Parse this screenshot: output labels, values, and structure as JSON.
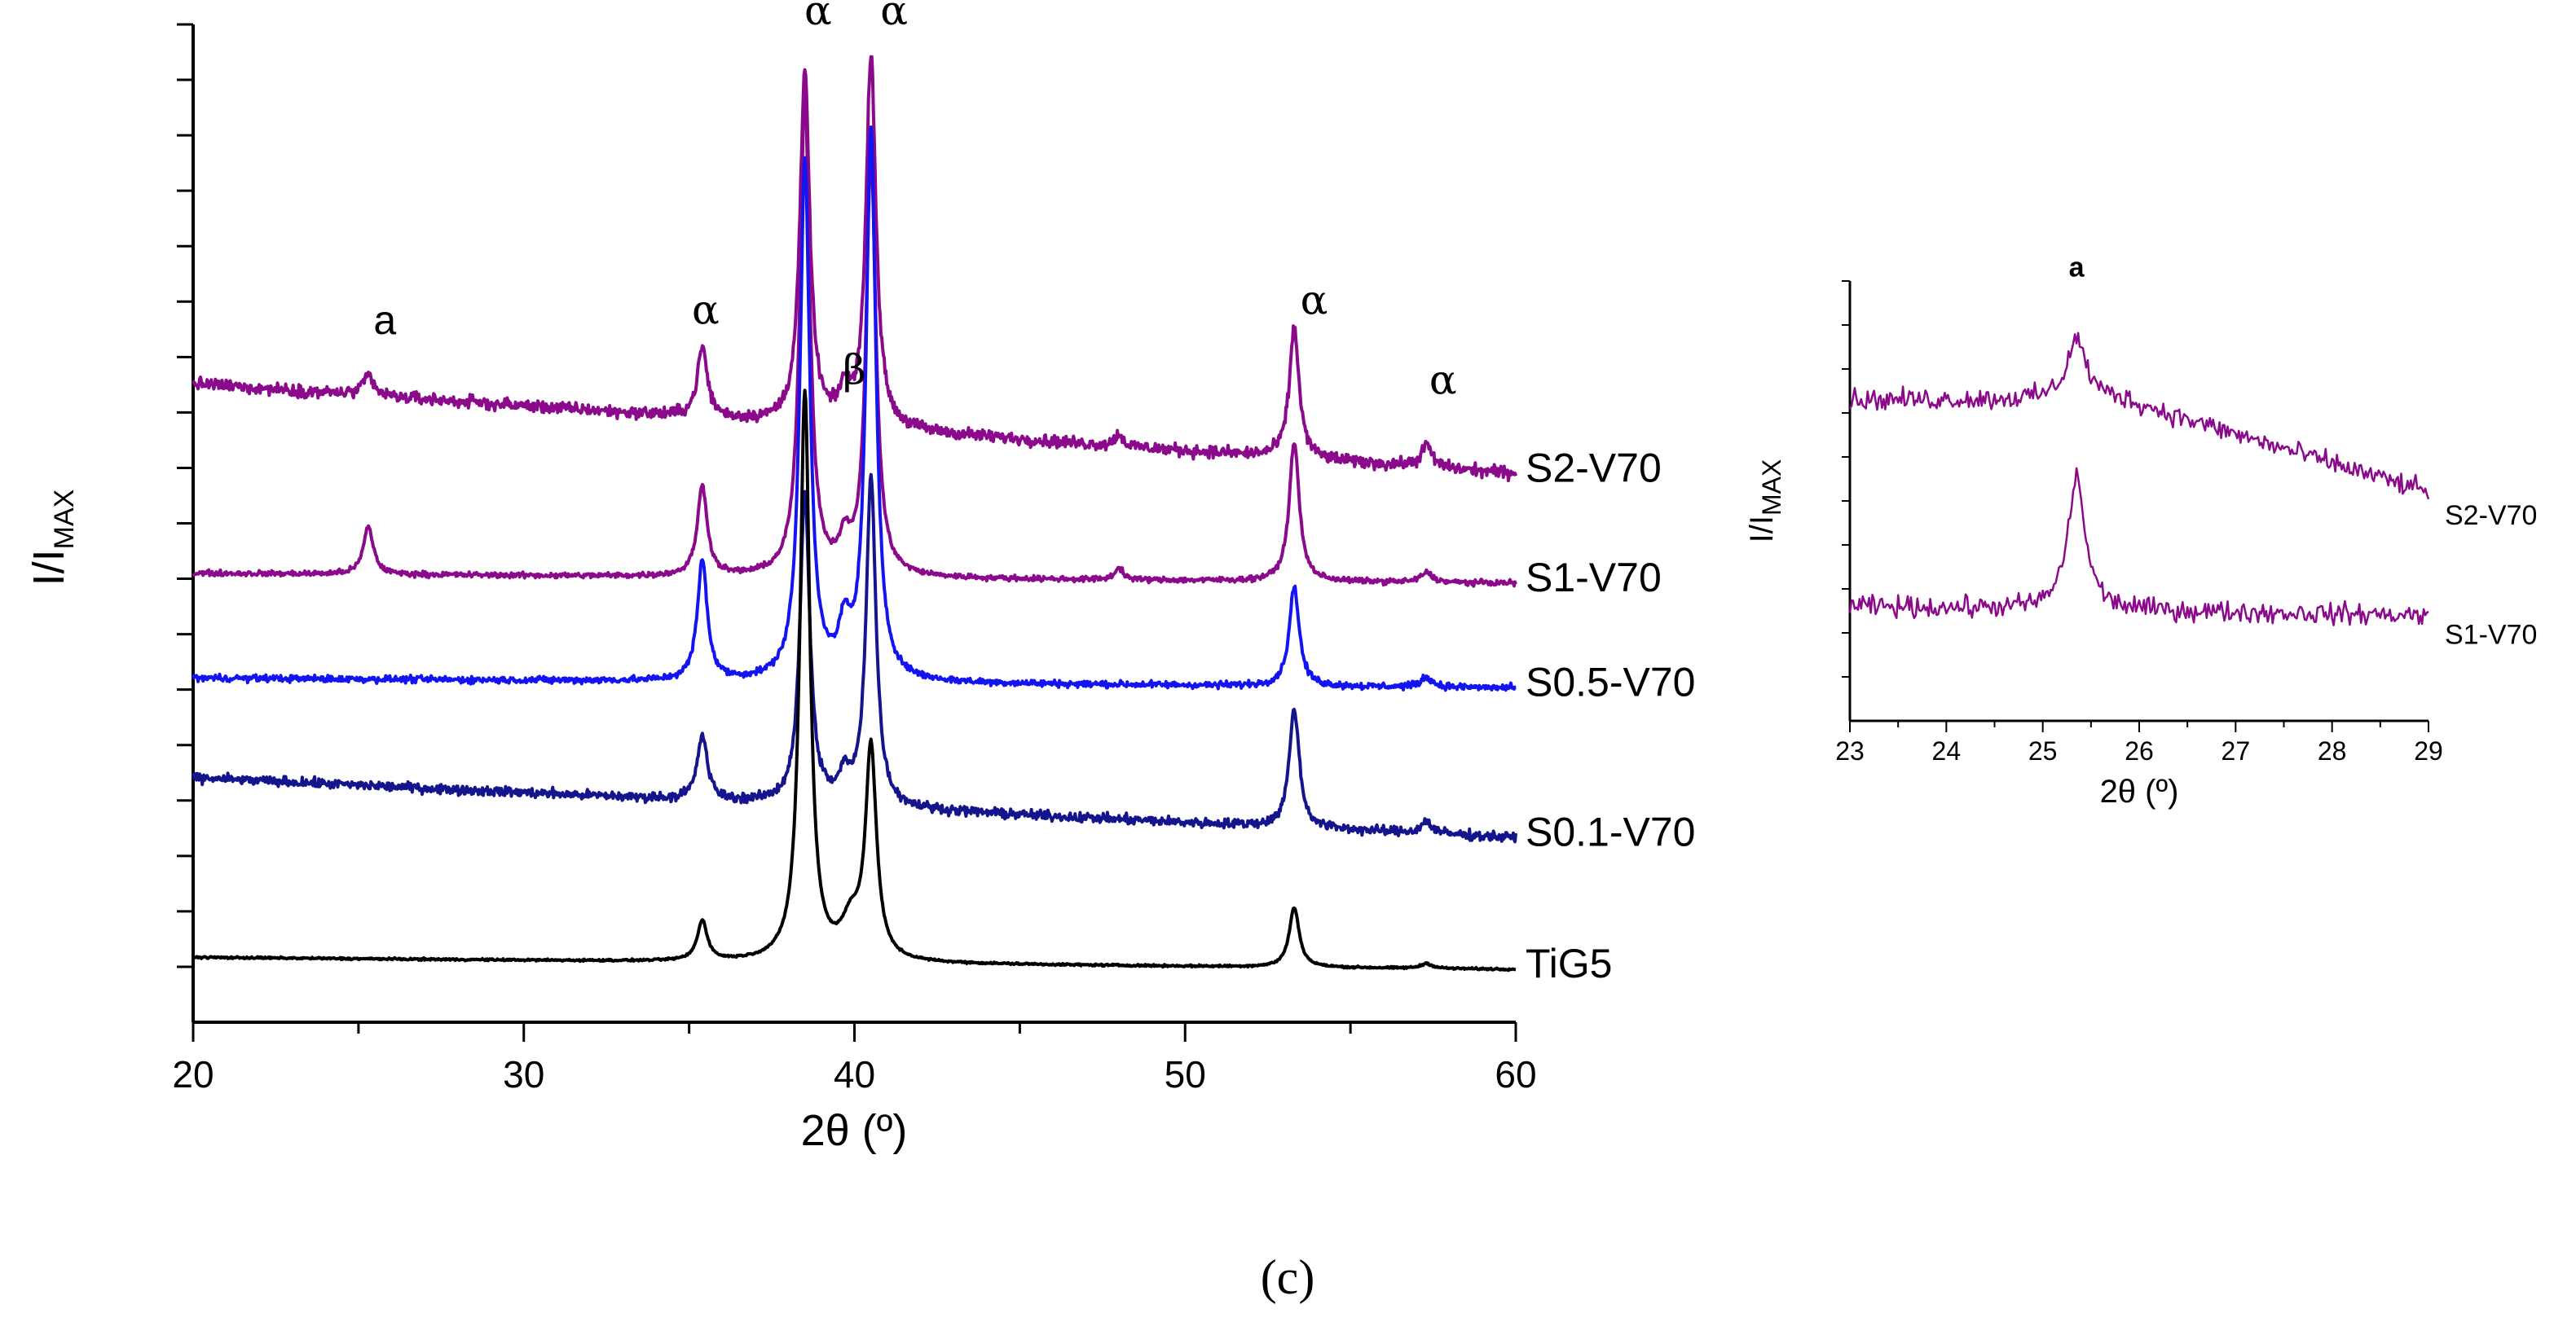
{
  "caption": "(c)",
  "chart_data": [
    {
      "type": "line",
      "title": "",
      "xlabel": "2θ (º)",
      "ylabel": "I/IMAX",
      "ylabel_main": "I/I",
      "ylabel_sub": "MAX",
      "xlim": [
        20,
        60
      ],
      "ylim": [
        -0.5,
        9.5
      ],
      "x_ticks": [
        20,
        30,
        40,
        50,
        60
      ],
      "x_tick_labels": [
        "20",
        "30",
        "40",
        "50",
        "60"
      ],
      "y_tick_labels": [],
      "grid": false,
      "peaks": [
        {
          "label": "a",
          "x": 25.8,
          "y": 6.4
        },
        {
          "label": "α",
          "x": 35.5,
          "y": 6.5
        },
        {
          "label": "α",
          "x": 38.9,
          "y": 9.5
        },
        {
          "label": "α",
          "x": 41.2,
          "y": 9.5
        },
        {
          "label": "β",
          "x": 40.0,
          "y": 5.9
        },
        {
          "label": "α",
          "x": 53.9,
          "y": 6.6
        },
        {
          "label": "α",
          "x": 57.8,
          "y": 5.8
        }
      ],
      "series": [
        {
          "name": "S2-V70",
          "color": "#8B0A8B",
          "baseline": [
            5.9,
            5.0
          ],
          "noise": 0.09,
          "slope_start": 20,
          "peaks": [
            [
              25.3,
              0.2,
              0.18
            ],
            [
              35.4,
              0.7,
              0.18
            ],
            [
              38.5,
              3.5,
              0.18
            ],
            [
              39.7,
              0.3,
              0.18
            ],
            [
              40.5,
              3.75,
              0.18
            ],
            [
              48.0,
              0.12,
              0.15
            ],
            [
              53.3,
              1.3,
              0.18
            ],
            [
              57.3,
              0.22,
              0.2
            ]
          ]
        },
        {
          "name": "S1-V70",
          "color": "#8B0A8B",
          "baseline": [
            4.0,
            3.9
          ],
          "noise": 0.04,
          "slope_start": 20,
          "peaks": [
            [
              25.3,
              0.48,
              0.18
            ],
            [
              35.4,
              0.9,
              0.18
            ],
            [
              38.5,
              4.8,
              0.18
            ],
            [
              39.7,
              0.3,
              0.18
            ],
            [
              40.5,
              4.2,
              0.18
            ],
            [
              48.0,
              0.12,
              0.15
            ],
            [
              53.3,
              1.4,
              0.18
            ],
            [
              57.3,
              0.1,
              0.2
            ]
          ]
        },
        {
          "name": "S0.5-V70",
          "color": "#1414F0",
          "baseline": [
            2.95,
            2.85
          ],
          "noise": 0.05,
          "slope_start": 20,
          "peaks": [
            [
              35.4,
              1.2,
              0.18
            ],
            [
              38.5,
              5.2,
              0.18
            ],
            [
              39.7,
              0.45,
              0.2
            ],
            [
              40.5,
              5.5,
              0.18
            ],
            [
              53.3,
              1.0,
              0.18
            ],
            [
              57.3,
              0.1,
              0.2
            ]
          ]
        },
        {
          "name": "S0.1-V70",
          "color": "#14148C",
          "baseline": [
            1.95,
            1.35
          ],
          "noise": 0.07,
          "slope_start": 20,
          "peaks": [
            [
              35.4,
              0.65,
              0.18
            ],
            [
              38.5,
              3.1,
              0.18
            ],
            [
              39.7,
              0.25,
              0.2
            ],
            [
              40.5,
              3.3,
              0.18
            ],
            [
              53.3,
              1.2,
              0.18
            ],
            [
              57.3,
              0.12,
              0.2
            ]
          ]
        },
        {
          "name": "TiG5",
          "color": "#000000",
          "baseline": [
            0.15,
            0.03
          ],
          "noise": 0.015,
          "slope_start": 20,
          "peaks": [
            [
              35.4,
              0.4,
              0.18
            ],
            [
              38.5,
              5.7,
              0.18
            ],
            [
              39.9,
              0.35,
              0.35
            ],
            [
              40.5,
              2.1,
              0.2
            ],
            [
              53.3,
              0.6,
              0.18
            ],
            [
              57.3,
              0.05,
              0.2
            ]
          ]
        }
      ]
    },
    {
      "type": "line",
      "title": "",
      "xlabel": "2θ (º)",
      "ylabel": "I/IMAX",
      "ylabel_main": "I/I",
      "ylabel_sub": "MAX",
      "xlim": [
        23,
        29
      ],
      "ylim": [
        0,
        10
      ],
      "x_ticks": [
        23,
        24,
        25,
        26,
        27,
        28,
        29
      ],
      "x_tick_labels": [
        "23",
        "24",
        "25",
        "26",
        "27",
        "28",
        "29"
      ],
      "y_tick_labels": [],
      "grid": false,
      "peaks": [
        {
          "label": "a",
          "x": 25.35,
          "y": 10.1
        }
      ],
      "series": [
        {
          "name": "S2-V70",
          "color": "#8B0A8B",
          "baseline": [
            7.3,
            5.2
          ],
          "noise": 0.35,
          "slope_start": 25.8,
          "peaks": [
            [
              25.35,
              1.4,
              0.12
            ]
          ]
        },
        {
          "name": "S1-V70",
          "color": "#8B0A8B",
          "baseline": [
            2.6,
            2.4
          ],
          "noise": 0.35,
          "slope_start": 23,
          "peaks": [
            [
              25.35,
              3.0,
              0.11
            ]
          ]
        }
      ]
    }
  ]
}
